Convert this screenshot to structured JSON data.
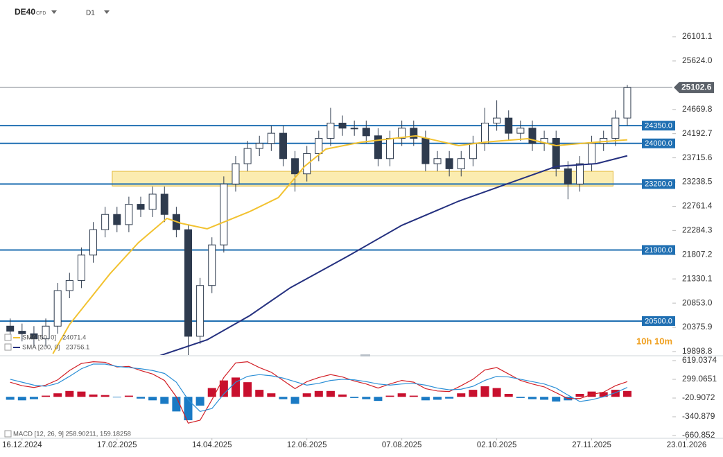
{
  "header": {
    "symbol": "DE40",
    "instrument": "CFD",
    "timeframe": "D1",
    "countdown": "10h 10m"
  },
  "chart_data": [
    {
      "type": "candlestick",
      "x": [
        -5,
        0,
        5,
        10,
        15,
        20,
        25,
        30,
        35,
        40,
        45,
        50,
        55,
        60,
        65,
        70,
        75,
        80,
        85,
        90,
        95,
        100,
        105,
        110,
        115,
        120,
        125,
        130,
        135,
        140,
        145,
        150,
        155,
        160,
        165,
        170,
        175,
        180,
        185,
        190,
        195,
        200,
        205,
        210,
        215,
        220,
        225,
        230,
        235,
        240,
        245,
        250,
        255
      ],
      "open": [
        20400,
        20300,
        20250,
        20150,
        20400,
        21100,
        21300,
        21800,
        22300,
        22600,
        22400,
        22800,
        22700,
        23000,
        22600,
        22300,
        20200,
        21200,
        22000,
        23200,
        23600,
        23900,
        24000,
        24200,
        23700,
        23400,
        23800,
        24100,
        24400,
        24300,
        24300,
        24150,
        23700,
        24100,
        24300,
        24100,
        23600,
        23700,
        23500,
        23700,
        24000,
        24400,
        24500,
        24200,
        24300,
        24000,
        24100,
        23500,
        23200,
        23600,
        24000,
        24100,
        24500
      ],
      "high": [
        20550,
        20450,
        20400,
        20550,
        21250,
        21450,
        21950,
        22450,
        22750,
        22750,
        22950,
        22950,
        23150,
        23150,
        22750,
        22400,
        21350,
        22150,
        23350,
        23750,
        24050,
        24150,
        24350,
        24350,
        23850,
        23950,
        24250,
        24700,
        24550,
        24450,
        24450,
        24300,
        24250,
        24450,
        24450,
        24250,
        23850,
        23850,
        23850,
        24150,
        24700,
        24850,
        24650,
        24450,
        24450,
        24250,
        24250,
        23650,
        23750,
        24150,
        24250,
        24650,
        25150
      ],
      "low": [
        20150,
        20100,
        20000,
        20000,
        20250,
        20950,
        21150,
        21650,
        22150,
        22250,
        22250,
        22550,
        22550,
        22450,
        22150,
        19800,
        20050,
        21050,
        21850,
        23050,
        23450,
        23750,
        23850,
        23550,
        23050,
        23250,
        23650,
        23950,
        24150,
        24150,
        24000,
        23550,
        23550,
        23950,
        23950,
        23450,
        23450,
        23350,
        23350,
        23550,
        23850,
        24250,
        24050,
        24050,
        23850,
        23850,
        23350,
        22900,
        23050,
        23450,
        23850,
        23950,
        24350
      ],
      "close": [
        20300,
        20250,
        20150,
        20400,
        21100,
        21300,
        21800,
        22300,
        22600,
        22400,
        22800,
        22700,
        23000,
        22600,
        22300,
        20200,
        21200,
        22000,
        23200,
        23600,
        23900,
        24000,
        24200,
        23700,
        23400,
        23800,
        24100,
        24400,
        24300,
        24300,
        24150,
        23700,
        24100,
        24300,
        24100,
        23600,
        23700,
        23500,
        23700,
        24000,
        24400,
        24500,
        24200,
        24300,
        24000,
        24100,
        23500,
        23200,
        23600,
        24000,
        24100,
        24500,
        25100
      ],
      "xlim": [
        -9,
        274
      ],
      "xticks": [
        {
          "value": 0,
          "label": "16.12.2024"
        },
        {
          "value": 40,
          "label": "17.02.2025"
        },
        {
          "value": 80,
          "label": "14.04.2025"
        },
        {
          "value": 120,
          "label": "12.06.2025"
        },
        {
          "value": 160,
          "label": "07.08.2025"
        },
        {
          "value": 200,
          "label": "02.10.2025"
        },
        {
          "value": 240,
          "label": "27.11.2025"
        },
        {
          "value": 280,
          "label": "23.01.2026"
        }
      ],
      "ylim": [
        19830,
        26825
      ],
      "yticks": [
        26101.1,
        {
          "value": 25624,
          "label": "25624.0"
        },
        24669.8,
        24192.7,
        23715.6,
        23238.5,
        22761.4,
        22284.3,
        21807.2,
        21330.1,
        {
          "value": 20853,
          "label": "20853.0"
        },
        20375.9,
        19898.8
      ],
      "last_price": 25102.6,
      "levels": [
        {
          "value": 24350,
          "label": "24350.0"
        },
        {
          "value": 24000,
          "label": "24000.0"
        },
        {
          "value": 23200,
          "label": "23200.0"
        },
        {
          "value": 21900,
          "label": "21900.0"
        },
        {
          "value": 20500,
          "label": "20500.0"
        }
      ],
      "level_color": "#1f6fb2",
      "zone": {
        "x": [
          38,
          249
        ],
        "y": [
          23160,
          23450
        ],
        "color": "#f7dc6f"
      },
      "series": [
        {
          "name": "SMA [50, 0]",
          "last": 24071.4,
          "color": "#f2c230",
          "x": [
            13,
            20,
            37,
            49,
            61,
            67,
            78,
            96,
            108,
            119,
            128,
            143,
            166,
            184,
            195,
            213,
            225,
            242,
            255
          ],
          "values": [
            19858,
            20432,
            21429,
            22044,
            22522,
            22426,
            22317,
            22659,
            22932,
            23546,
            23888,
            24025,
            24148,
            23956,
            24025,
            24093,
            23956,
            24025,
            24071
          ]
        },
        {
          "name": "SMA [200, 0]",
          "last": 23756.1,
          "color": "#24307f",
          "x": [
            58,
            78,
            96,
            113,
            137,
            160,
            184,
            207,
            225,
            242,
            255
          ],
          "values": [
            19817,
            20131,
            20609,
            21156,
            21771,
            22386,
            22863,
            23246,
            23546,
            23601,
            23756
          ]
        }
      ],
      "bull_color": "#ffffff",
      "bear_color": "#2e3b4e"
    },
    {
      "type": "macd",
      "legend": "MACD [12, 26, 9] 258.90211, 159.18258",
      "ylim": [
        -660.852,
        619.0374
      ],
      "yticks": [
        619.0374,
        299.0651,
        -20.9072,
        -340.879,
        -660.852
      ],
      "histogram": [
        -50,
        -60,
        -40,
        20,
        60,
        100,
        90,
        40,
        30,
        -10,
        20,
        -30,
        -60,
        -120,
        -250,
        -400,
        -150,
        150,
        280,
        330,
        250,
        120,
        60,
        -40,
        -120,
        60,
        100,
        100,
        40,
        -20,
        -40,
        -70,
        20,
        60,
        20,
        -60,
        -50,
        -30,
        60,
        120,
        180,
        150,
        50,
        -20,
        -40,
        -50,
        -80,
        -60,
        50,
        90,
        80,
        120,
        100
      ],
      "positive_color": "#c8102e",
      "negative_color": "#1a7ac4",
      "series": [
        {
          "name": "MACD",
          "color": "#d21f26",
          "values": [
            250,
            190,
            160,
            200,
            290,
            450,
            570,
            600,
            590,
            510,
            520,
            450,
            390,
            280,
            0,
            -450,
            -400,
            -50,
            330,
            580,
            600,
            500,
            420,
            280,
            140,
            260,
            330,
            380,
            340,
            270,
            220,
            150,
            220,
            280,
            250,
            140,
            100,
            90,
            190,
            300,
            460,
            500,
            390,
            280,
            220,
            170,
            70,
            -30,
            -30,
            40,
            80,
            190,
            260
          ]
        },
        {
          "name": "Signal",
          "color": "#2b8fd6",
          "values": [
            300,
            250,
            200,
            180,
            230,
            350,
            480,
            560,
            560,
            520,
            500,
            480,
            450,
            400,
            250,
            -50,
            -250,
            -200,
            50,
            250,
            350,
            380,
            360,
            320,
            260,
            200,
            230,
            280,
            300,
            290,
            260,
            220,
            200,
            220,
            230,
            200,
            150,
            120,
            130,
            180,
            280,
            350,
            340,
            300,
            260,
            220,
            150,
            30,
            -80,
            -50,
            0,
            70,
            160
          ]
        }
      ]
    }
  ]
}
